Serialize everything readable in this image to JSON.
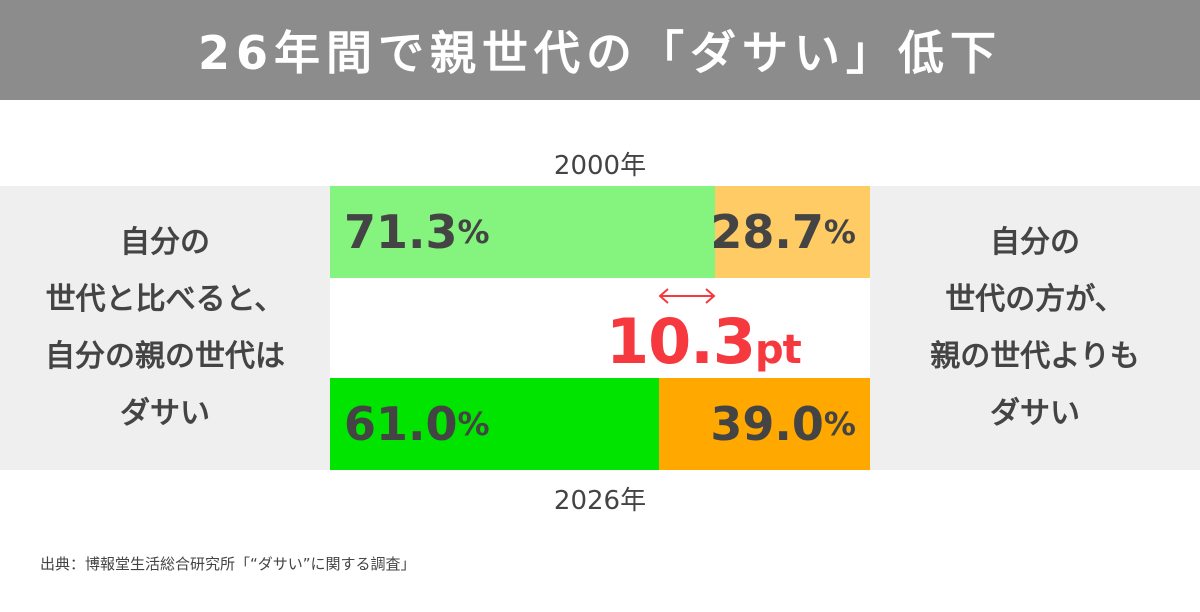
{
  "header": {
    "title": "26年間で親世代の「ダサい」低下"
  },
  "left_label": {
    "lines": [
      "自分の",
      "世代と比べると、",
      "自分の親の世代は",
      "ダサい"
    ]
  },
  "right_label": {
    "lines": [
      "自分の",
      "世代の方が、",
      "親の世代よりも",
      "ダサい"
    ]
  },
  "bars": [
    {
      "year_label": "2000年",
      "left": {
        "value": "71.3",
        "unit": "%",
        "color": "#84f47f"
      },
      "right": {
        "value": "28.7",
        "unit": "%",
        "color": "#fecb64"
      }
    },
    {
      "year_label": "2026年",
      "left": {
        "value": "61.0",
        "unit": "%",
        "color": "#00e400"
      },
      "right": {
        "value": "39.0",
        "unit": "%",
        "color": "#fea800"
      }
    }
  ],
  "difference": {
    "value": "10.3",
    "unit": "pt",
    "color": "#f5393f"
  },
  "source": "出典：博報堂生活総合研究所「“ダサい”に関する調査」",
  "chart_data": {
    "type": "bar",
    "orientation": "horizontal",
    "stacked": true,
    "percent": true,
    "title": "26年間で親世代の「ダサい」低下",
    "categories": [
      "2000年",
      "2026年"
    ],
    "series": [
      {
        "name": "自分の世代と比べると、自分の親の世代はダサい",
        "values": [
          71.3,
          61.0
        ]
      },
      {
        "name": "自分の世代の方が、親の世代よりもダサい",
        "values": [
          28.7,
          39.0
        ]
      }
    ],
    "annotations": [
      {
        "text": "10.3pt",
        "type": "difference-arrow",
        "between": [
          "2000年",
          "2026年"
        ]
      }
    ],
    "xlim": [
      0,
      100
    ],
    "source": "出典：博報堂生活総合研究所「“ダサい”に関する調査」"
  }
}
